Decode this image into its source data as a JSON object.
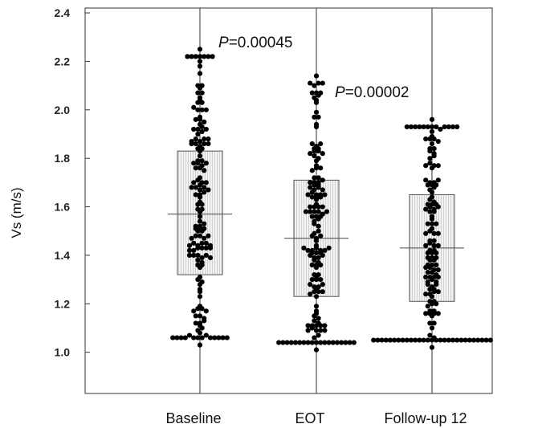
{
  "chart_data": {
    "type": "scatter",
    "subtype": "dot-plot with interquartile boxes",
    "ylabel": "Vs (m/s)",
    "ylim": [
      0.83,
      2.42
    ],
    "yticks": [
      "1.0",
      "1.2",
      "1.4",
      "1.6",
      "1.8",
      "2.0",
      "2.2",
      "2.4"
    ],
    "categories": [
      "Baseline",
      "EOT",
      "Follow-up 12"
    ],
    "groups": [
      {
        "category": "Baseline",
        "box_low": 1.32,
        "box_high": 1.83,
        "median": 1.57,
        "min": 1.03,
        "max": 2.25
      },
      {
        "category": "EOT",
        "box_low": 1.23,
        "box_high": 1.71,
        "median": 1.47,
        "min": 1.01,
        "max": 2.14
      },
      {
        "category": "Follow-up 12",
        "box_low": 1.21,
        "box_high": 1.65,
        "median": 1.43,
        "min": 1.02,
        "max": 1.96
      }
    ],
    "annotations": [
      {
        "italic": "P",
        "text": "=0.00045",
        "between": [
          "Baseline",
          "EOT"
        ]
      },
      {
        "italic": "P",
        "text": "=0.00002",
        "between": [
          "EOT",
          "Follow-up 12"
        ]
      }
    ],
    "legend": "none",
    "grid": false
  }
}
